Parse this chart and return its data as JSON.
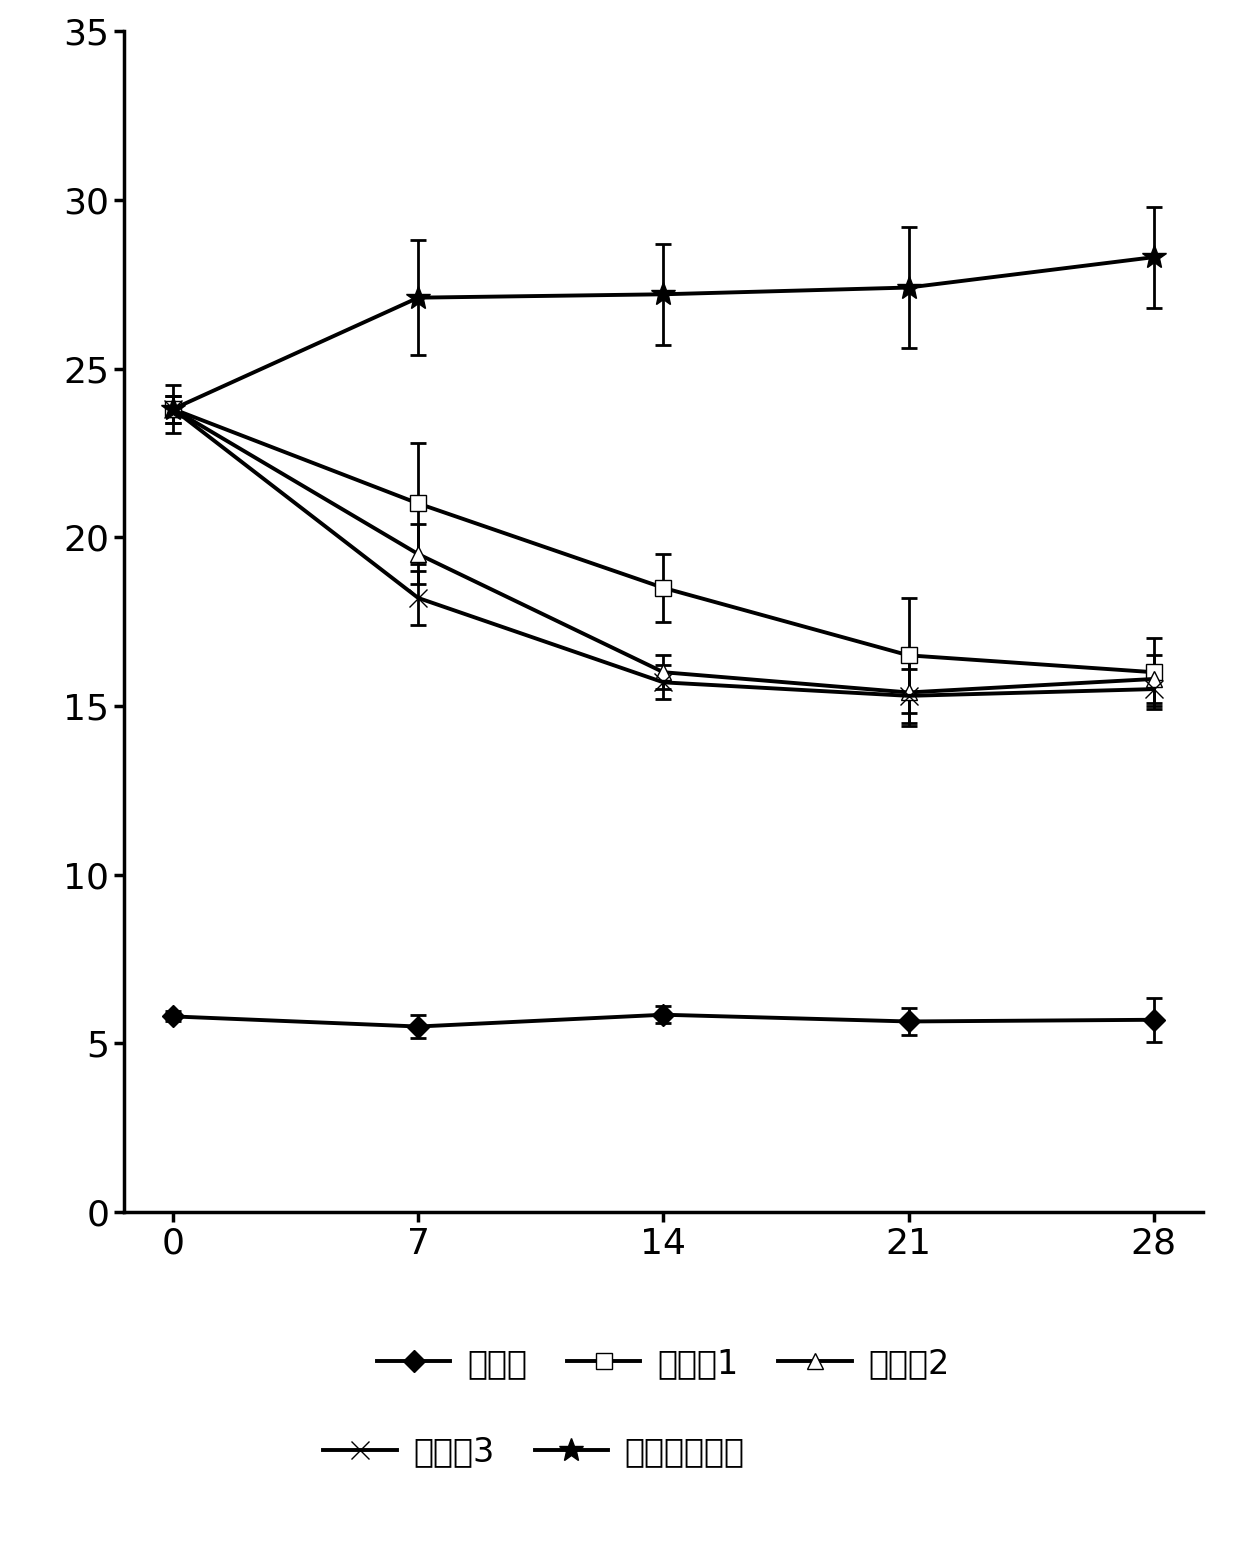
{
  "x": [
    0,
    7,
    14,
    21,
    28
  ],
  "series_order": [
    "正常组",
    "实施例1",
    "实施例2",
    "实施例3",
    "高血糖对照组"
  ],
  "series": {
    "正常组": {
      "y": [
        5.8,
        5.5,
        5.85,
        5.65,
        5.7
      ],
      "yerr": [
        0.15,
        0.35,
        0.25,
        0.4,
        0.65
      ],
      "marker": "D",
      "marker_size": 11,
      "linewidth": 2.8,
      "markerfacecolor": "#000000"
    },
    "实施例1": {
      "y": [
        23.8,
        21.0,
        18.5,
        16.5,
        16.0
      ],
      "yerr": [
        0.4,
        1.8,
        1.0,
        1.7,
        1.0
      ],
      "marker": "s",
      "marker_size": 11,
      "linewidth": 2.8,
      "markerfacecolor": "#ffffff"
    },
    "实施例2": {
      "y": [
        23.8,
        19.5,
        16.0,
        15.4,
        15.8
      ],
      "yerr": [
        0.4,
        0.9,
        0.5,
        1.0,
        0.7
      ],
      "marker": "^",
      "marker_size": 11,
      "linewidth": 2.8,
      "markerfacecolor": "#ffffff"
    },
    "实施例3": {
      "y": [
        23.8,
        18.2,
        15.7,
        15.3,
        15.5
      ],
      "yerr": [
        0.4,
        0.8,
        0.5,
        0.8,
        0.6
      ],
      "marker": "x",
      "marker_size": 13,
      "linewidth": 2.8,
      "markerfacecolor": "#000000"
    },
    "高血糖对照组": {
      "y": [
        23.8,
        27.1,
        27.2,
        27.4,
        28.3
      ],
      "yerr": [
        0.7,
        1.7,
        1.5,
        1.8,
        1.5
      ],
      "marker": "*",
      "marker_size": 18,
      "linewidth": 2.8,
      "markerfacecolor": "#000000"
    }
  },
  "ylim": [
    0,
    35
  ],
  "yticks": [
    0,
    5,
    10,
    15,
    20,
    25,
    30,
    35
  ],
  "xticks": [
    0,
    7,
    14,
    21,
    28
  ],
  "legend_row1": [
    "正常组",
    "实施例1",
    "实施例2"
  ],
  "legend_row2": [
    "实施例3",
    "高血糖对照组"
  ],
  "background_color": "#ffffff",
  "tick_fontsize": 26,
  "legend_fontsize": 24,
  "spine_linewidth": 2.5
}
